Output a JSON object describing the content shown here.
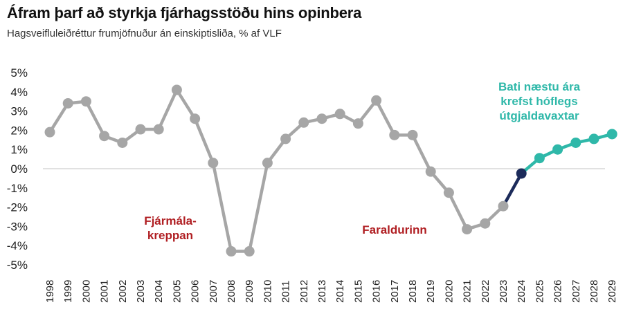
{
  "title": "Áfram þarf að styrkja fjárhagsstöðu hins opinbera",
  "subtitle": "Hagsveifluleiðréttur frumjöfnuður án einskiptisliða, % af VLF",
  "chart_data": {
    "type": "line",
    "ylim": [
      -5,
      5
    ],
    "yticks": [
      "5%",
      "4%",
      "3%",
      "2%",
      "1%",
      "0%",
      "-1%",
      "-2%",
      "-3%",
      "-4%",
      "-5%"
    ],
    "categories": [
      "1998",
      "1999",
      "2000",
      "2001",
      "2002",
      "2003",
      "2004",
      "2005",
      "2006",
      "2007",
      "2008",
      "2009",
      "2010",
      "2011",
      "2012",
      "2013",
      "2014",
      "2015",
      "2016",
      "2017",
      "2018",
      "2019",
      "2020",
      "2021",
      "2022",
      "2023",
      "2024",
      "2025",
      "2026",
      "2027",
      "2028",
      "2029"
    ],
    "series": [
      {
        "segment": "historical",
        "color": "#a6a6a6",
        "x": [
          "1998",
          "1999",
          "2000",
          "2001",
          "2002",
          "2003",
          "2004",
          "2005",
          "2006",
          "2007",
          "2008",
          "2009",
          "2010",
          "2011",
          "2012",
          "2013",
          "2014",
          "2015",
          "2016",
          "2017",
          "2018",
          "2019",
          "2020",
          "2021",
          "2022",
          "2023"
        ],
        "values": [
          1.9,
          3.4,
          3.5,
          1.7,
          1.35,
          2.05,
          2.05,
          4.1,
          2.6,
          0.3,
          -4.3,
          -4.3,
          0.3,
          1.55,
          2.4,
          2.6,
          2.85,
          2.35,
          3.55,
          1.75,
          1.75,
          -0.15,
          -1.25,
          -3.15,
          -2.85,
          -1.95
        ]
      },
      {
        "segment": "current",
        "color": "#1c2b5a",
        "x": [
          "2023",
          "2024"
        ],
        "values": [
          -1.95,
          -0.25
        ]
      },
      {
        "segment": "forecast",
        "color": "#2fb8a9",
        "x": [
          "2024",
          "2025",
          "2026",
          "2027",
          "2028",
          "2029"
        ],
        "values": [
          -0.25,
          0.55,
          1.0,
          1.35,
          1.55,
          1.8
        ]
      }
    ],
    "annotations": [
      {
        "lines": [
          "Fjármála-",
          "kreppan"
        ],
        "color": "#b01e22"
      },
      {
        "lines": [
          "Faraldurinn"
        ],
        "color": "#b01e22"
      },
      {
        "lines": [
          "Bati næstu ára",
          "krefst hóflegs",
          "útgjaldavaxtar"
        ],
        "color": "#2fb8a9"
      }
    ],
    "zero_line": true,
    "grid": false
  }
}
